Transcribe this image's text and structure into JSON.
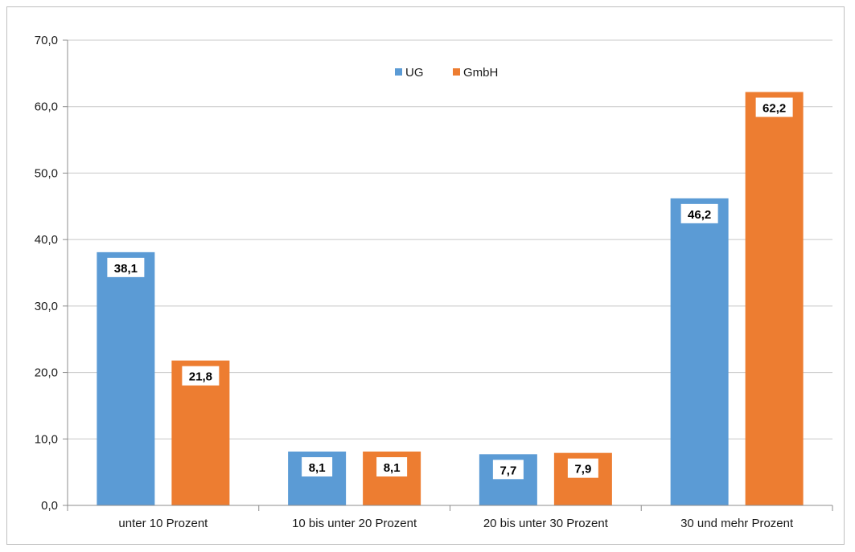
{
  "chart_data": {
    "type": "bar",
    "title": "",
    "xlabel": "",
    "ylabel": "",
    "categories": [
      "unter 10 Prozent",
      "10 bis unter 20 Prozent",
      "20 bis unter 30 Prozent",
      "30 und mehr Prozent"
    ],
    "series": [
      {
        "name": "UG",
        "color": "#5b9bd5",
        "values": [
          38.1,
          8.1,
          7.7,
          46.2
        ],
        "labels": [
          "38,1",
          "8,1",
          "7,7",
          "46,2"
        ]
      },
      {
        "name": "GmbH",
        "color": "#ed7d31",
        "values": [
          21.8,
          8.1,
          7.9,
          62.2
        ],
        "labels": [
          "21,8",
          "8,1",
          "7,9",
          "62,2"
        ]
      }
    ],
    "ylim": [
      0,
      70
    ],
    "yticks": [
      0,
      10,
      20,
      30,
      40,
      50,
      60,
      70
    ],
    "ytick_labels": [
      "0,0",
      "10,0",
      "20,0",
      "30,0",
      "40,0",
      "50,0",
      "60,0",
      "70,0"
    ],
    "grid": true,
    "legend_position": "top-center"
  }
}
